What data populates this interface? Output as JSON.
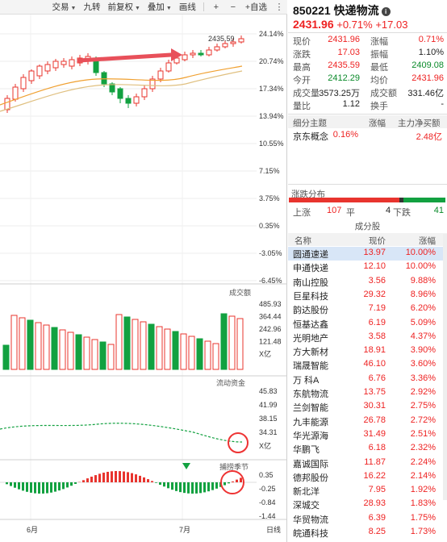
{
  "toolbar": {
    "items": [
      {
        "label": "交易",
        "caret": true
      },
      {
        "label": "九转",
        "caret": false
      },
      {
        "label": "前复权",
        "caret": true
      },
      {
        "label": "叠加",
        "caret": true
      },
      {
        "label": "画线",
        "caret": false
      }
    ],
    "add_watch_label": "自选"
  },
  "chart": {
    "price_axis": [
      "24.14%",
      "20.74%",
      "17.34%",
      "13.94%",
      "10.55%",
      "7.15%",
      "3.75%",
      "0.35%",
      "-3.05%",
      "-6.45%"
    ],
    "high_label": "2435.59",
    "volume_title": "成交额",
    "volume_axis": [
      "485.93",
      "364.44",
      "242.96",
      "121.48",
      "X亿"
    ],
    "fund_title": "流动资金",
    "fund_axis": [
      "45.83",
      "41.99",
      "38.15",
      "34.31",
      "X亿"
    ],
    "macd_title": "捕捞季节",
    "macd_axis": [
      "0.35",
      "-0.25",
      "-0.84",
      "-1.44"
    ],
    "x_labels": [
      "6月",
      "7月"
    ],
    "period_label": "日线",
    "colors": {
      "up": "#e8342e",
      "down": "#12a140",
      "ma1": "#f0a030",
      "ma2": "#e0c080",
      "arrow": "#e8505a"
    }
  },
  "quote": {
    "code_name": "850221 快递物流",
    "price": "2431.96",
    "change_pct": "+0.71%",
    "change_abs": "+17.03",
    "rows": [
      {
        "l1": "现价",
        "v1": "2431.96",
        "c1": "red",
        "l2": "涨幅",
        "v2": "0.71%",
        "c2": "red"
      },
      {
        "l1": "涨跌",
        "v1": "17.03",
        "c1": "red",
        "l2": "振幅",
        "v2": "1.10%",
        "c2": "dark"
      },
      {
        "l1": "最高",
        "v1": "2435.59",
        "c1": "red",
        "l2": "最低",
        "v2": "2409.08",
        "c2": "green"
      },
      {
        "l1": "今开",
        "v1": "2412.29",
        "c1": "green",
        "l2": "均价",
        "v2": "2431.96",
        "c2": "red"
      },
      {
        "l1": "成交量",
        "v1": "3573.25万",
        "c1": "dark",
        "l2": "成交额",
        "v2": "331.46亿",
        "c2": "dark"
      },
      {
        "l1": "量比",
        "v1": "1.12",
        "c1": "dark",
        "l2": "换手",
        "v2": "-",
        "c2": "dark"
      }
    ],
    "theme_header": {
      "name": "细分主题",
      "pct": "涨幅",
      "flow": "主力净买额"
    },
    "theme_row": {
      "name": "京东概念",
      "pct": "0.16%",
      "flow": "2.48亿"
    },
    "dist_title": "涨跌分布",
    "dist": {
      "up_label": "上涨",
      "up": "107",
      "flat_label": "平",
      "flat": "4",
      "down_label": "下跌",
      "down": "41"
    },
    "components_title": "成分股",
    "comp_header": {
      "name": "名称",
      "price": "现价",
      "pct": "涨幅"
    },
    "stocks": [
      {
        "name": "圆通速递",
        "price": "13.97",
        "pct": "10.00%"
      },
      {
        "name": "申通快递",
        "price": "12.10",
        "pct": "10.00%"
      },
      {
        "name": "南山控股",
        "price": "3.56",
        "pct": "9.88%"
      },
      {
        "name": "巨星科技",
        "price": "29.32",
        "pct": "8.96%"
      },
      {
        "name": "韵达股份",
        "price": "7.19",
        "pct": "6.20%"
      },
      {
        "name": "恒基达鑫",
        "price": "6.19",
        "pct": "5.09%"
      },
      {
        "name": "光明地产",
        "price": "3.58",
        "pct": "4.37%"
      },
      {
        "name": "方大新材",
        "price": "18.91",
        "pct": "3.90%"
      },
      {
        "name": "瑞晟智能",
        "price": "46.10",
        "pct": "3.60%"
      },
      {
        "name": "万 科A",
        "price": "6.76",
        "pct": "3.36%"
      },
      {
        "name": "东航物流",
        "price": "13.75",
        "pct": "2.92%"
      },
      {
        "name": "兰剑智能",
        "price": "30.31",
        "pct": "2.75%"
      },
      {
        "name": "九丰能源",
        "price": "26.78",
        "pct": "2.72%"
      },
      {
        "name": "华光源海",
        "price": "31.49",
        "pct": "2.51%"
      },
      {
        "name": "华鹏飞",
        "price": "6.18",
        "pct": "2.32%"
      },
      {
        "name": "嘉诚国际",
        "price": "11.87",
        "pct": "2.24%"
      },
      {
        "name": "德邦股份",
        "price": "16.22",
        "pct": "2.14%"
      },
      {
        "name": "新北洋",
        "price": "7.95",
        "pct": "1.92%"
      },
      {
        "name": "深城交",
        "price": "28.93",
        "pct": "1.83%"
      },
      {
        "name": "华贸物流",
        "price": "6.39",
        "pct": "1.75%"
      },
      {
        "name": "皖通科技",
        "price": "8.25",
        "pct": "1.73%"
      }
    ]
  }
}
